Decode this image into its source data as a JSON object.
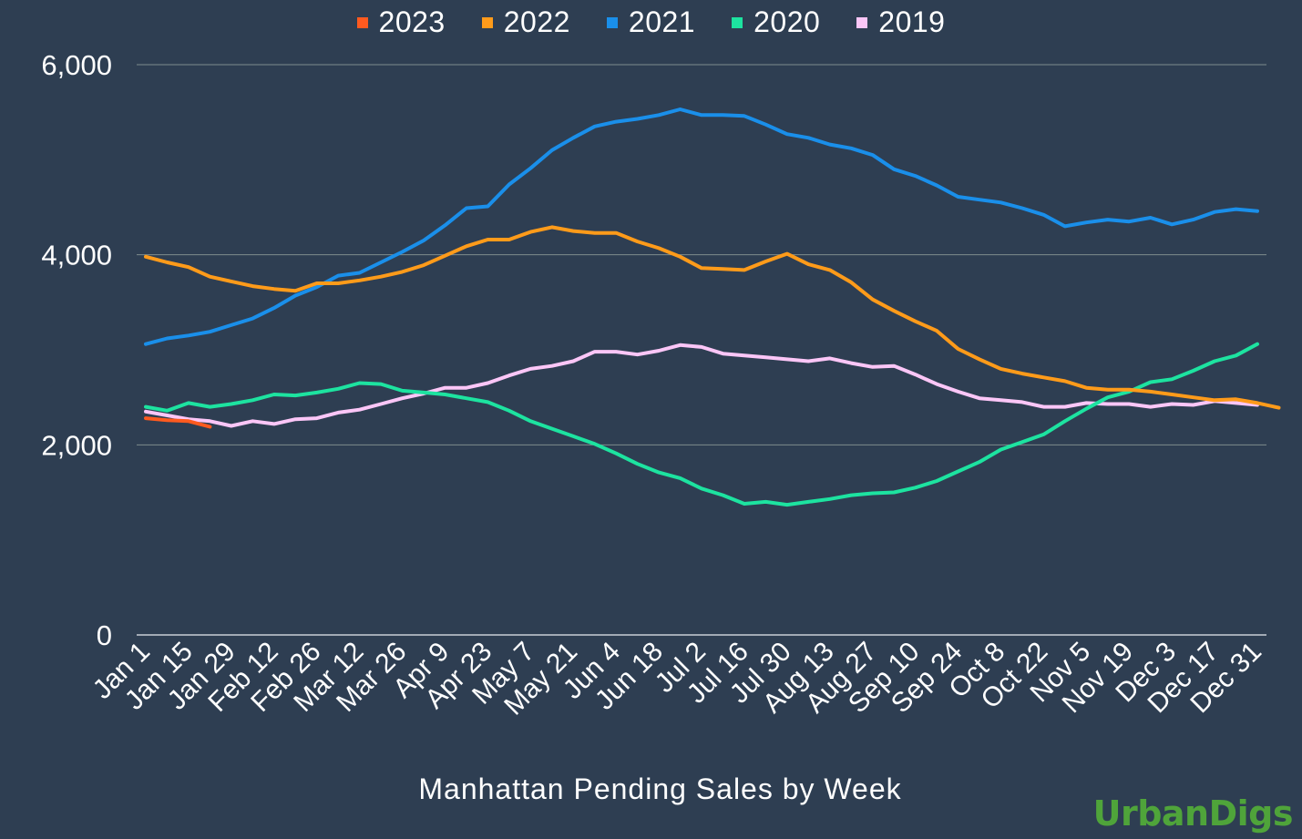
{
  "chart_data": {
    "type": "line",
    "title": "",
    "xlabel": "Manhattan Pending Sales by Week",
    "ylabel": "",
    "ylim": [
      0,
      6000
    ],
    "yticks": [
      "0",
      "2,000",
      "4,000",
      "6,000"
    ],
    "ytick_values": [
      0,
      2000,
      4000,
      6000
    ],
    "grid": true,
    "legend_position": "top-center",
    "x_tick_labels": [
      "Jan 1",
      "Jan 15",
      "Jan 29",
      "Feb 12",
      "Feb 26",
      "Mar 12",
      "Mar 26",
      "Apr 9",
      "Apr 23",
      "May 7",
      "May 21",
      "Jun 4",
      "Jun 18",
      "Jul 2",
      "Jul 16",
      "Jul 30",
      "Aug 13",
      "Aug 27",
      "Sep 10",
      "Sep 24",
      "Oct 8",
      "Oct 22",
      "Nov 5",
      "Nov 19",
      "Dec 3",
      "Dec 17",
      "Dec 31"
    ],
    "series": [
      {
        "name": "2023",
        "color": "#ff5a1f",
        "values": [
          2280,
          2260,
          2250,
          2190
        ]
      },
      {
        "name": "2022",
        "color": "#ff9b1a",
        "values": [
          3980,
          3920,
          3870,
          3770,
          3720,
          3670,
          3640,
          3620,
          3700,
          3700,
          3730,
          3770,
          3820,
          3890,
          3990,
          4090,
          4160,
          4160,
          4240,
          4290,
          4250,
          4230,
          4230,
          4140,
          4070,
          3980,
          3860,
          3850,
          3840,
          3930,
          4010,
          3900,
          3840,
          3710,
          3530,
          3410,
          3300,
          3200,
          3010,
          2900,
          2800,
          2750,
          2710,
          2670,
          2600,
          2580,
          2580,
          2560,
          2530,
          2500,
          2470,
          2480,
          2440,
          2390
        ]
      },
      {
        "name": "2021",
        "color": "#1a8fea",
        "values": [
          3060,
          3120,
          3150,
          3190,
          3260,
          3330,
          3440,
          3570,
          3660,
          3780,
          3810,
          3920,
          4030,
          4150,
          4310,
          4490,
          4510,
          4740,
          4910,
          5100,
          5230,
          5350,
          5400,
          5430,
          5470,
          5530,
          5470,
          5470,
          5460,
          5370,
          5270,
          5230,
          5160,
          5120,
          5050,
          4900,
          4830,
          4730,
          4610,
          4580,
          4550,
          4490,
          4420,
          4300,
          4340,
          4370,
          4350,
          4390,
          4320,
          4370,
          4450,
          4480,
          4460
        ]
      },
      {
        "name": "2020",
        "color": "#1de3a0",
        "values": [
          2400,
          2360,
          2440,
          2400,
          2430,
          2470,
          2530,
          2520,
          2550,
          2590,
          2650,
          2640,
          2570,
          2550,
          2530,
          2490,
          2450,
          2360,
          2250,
          2170,
          2090,
          2010,
          1910,
          1800,
          1710,
          1650,
          1540,
          1470,
          1380,
          1400,
          1370,
          1400,
          1430,
          1470,
          1490,
          1500,
          1550,
          1620,
          1720,
          1820,
          1950,
          2030,
          2110,
          2250,
          2380,
          2500,
          2560,
          2660,
          2690,
          2780,
          2880,
          2940,
          3060
        ]
      },
      {
        "name": "2019",
        "color": "#fbc6f7",
        "values": [
          2350,
          2310,
          2270,
          2250,
          2200,
          2250,
          2220,
          2270,
          2280,
          2340,
          2370,
          2430,
          2490,
          2540,
          2600,
          2600,
          2650,
          2730,
          2800,
          2830,
          2880,
          2980,
          2980,
          2950,
          2990,
          3050,
          3030,
          2960,
          2940,
          2920,
          2900,
          2880,
          2910,
          2860,
          2820,
          2830,
          2740,
          2640,
          2560,
          2490,
          2470,
          2450,
          2400,
          2400,
          2440,
          2430,
          2430,
          2400,
          2430,
          2420,
          2460,
          2440,
          2420
        ]
      }
    ]
  },
  "branding": {
    "logo_text": "UrbanDigs",
    "color": "#4fa43a"
  }
}
